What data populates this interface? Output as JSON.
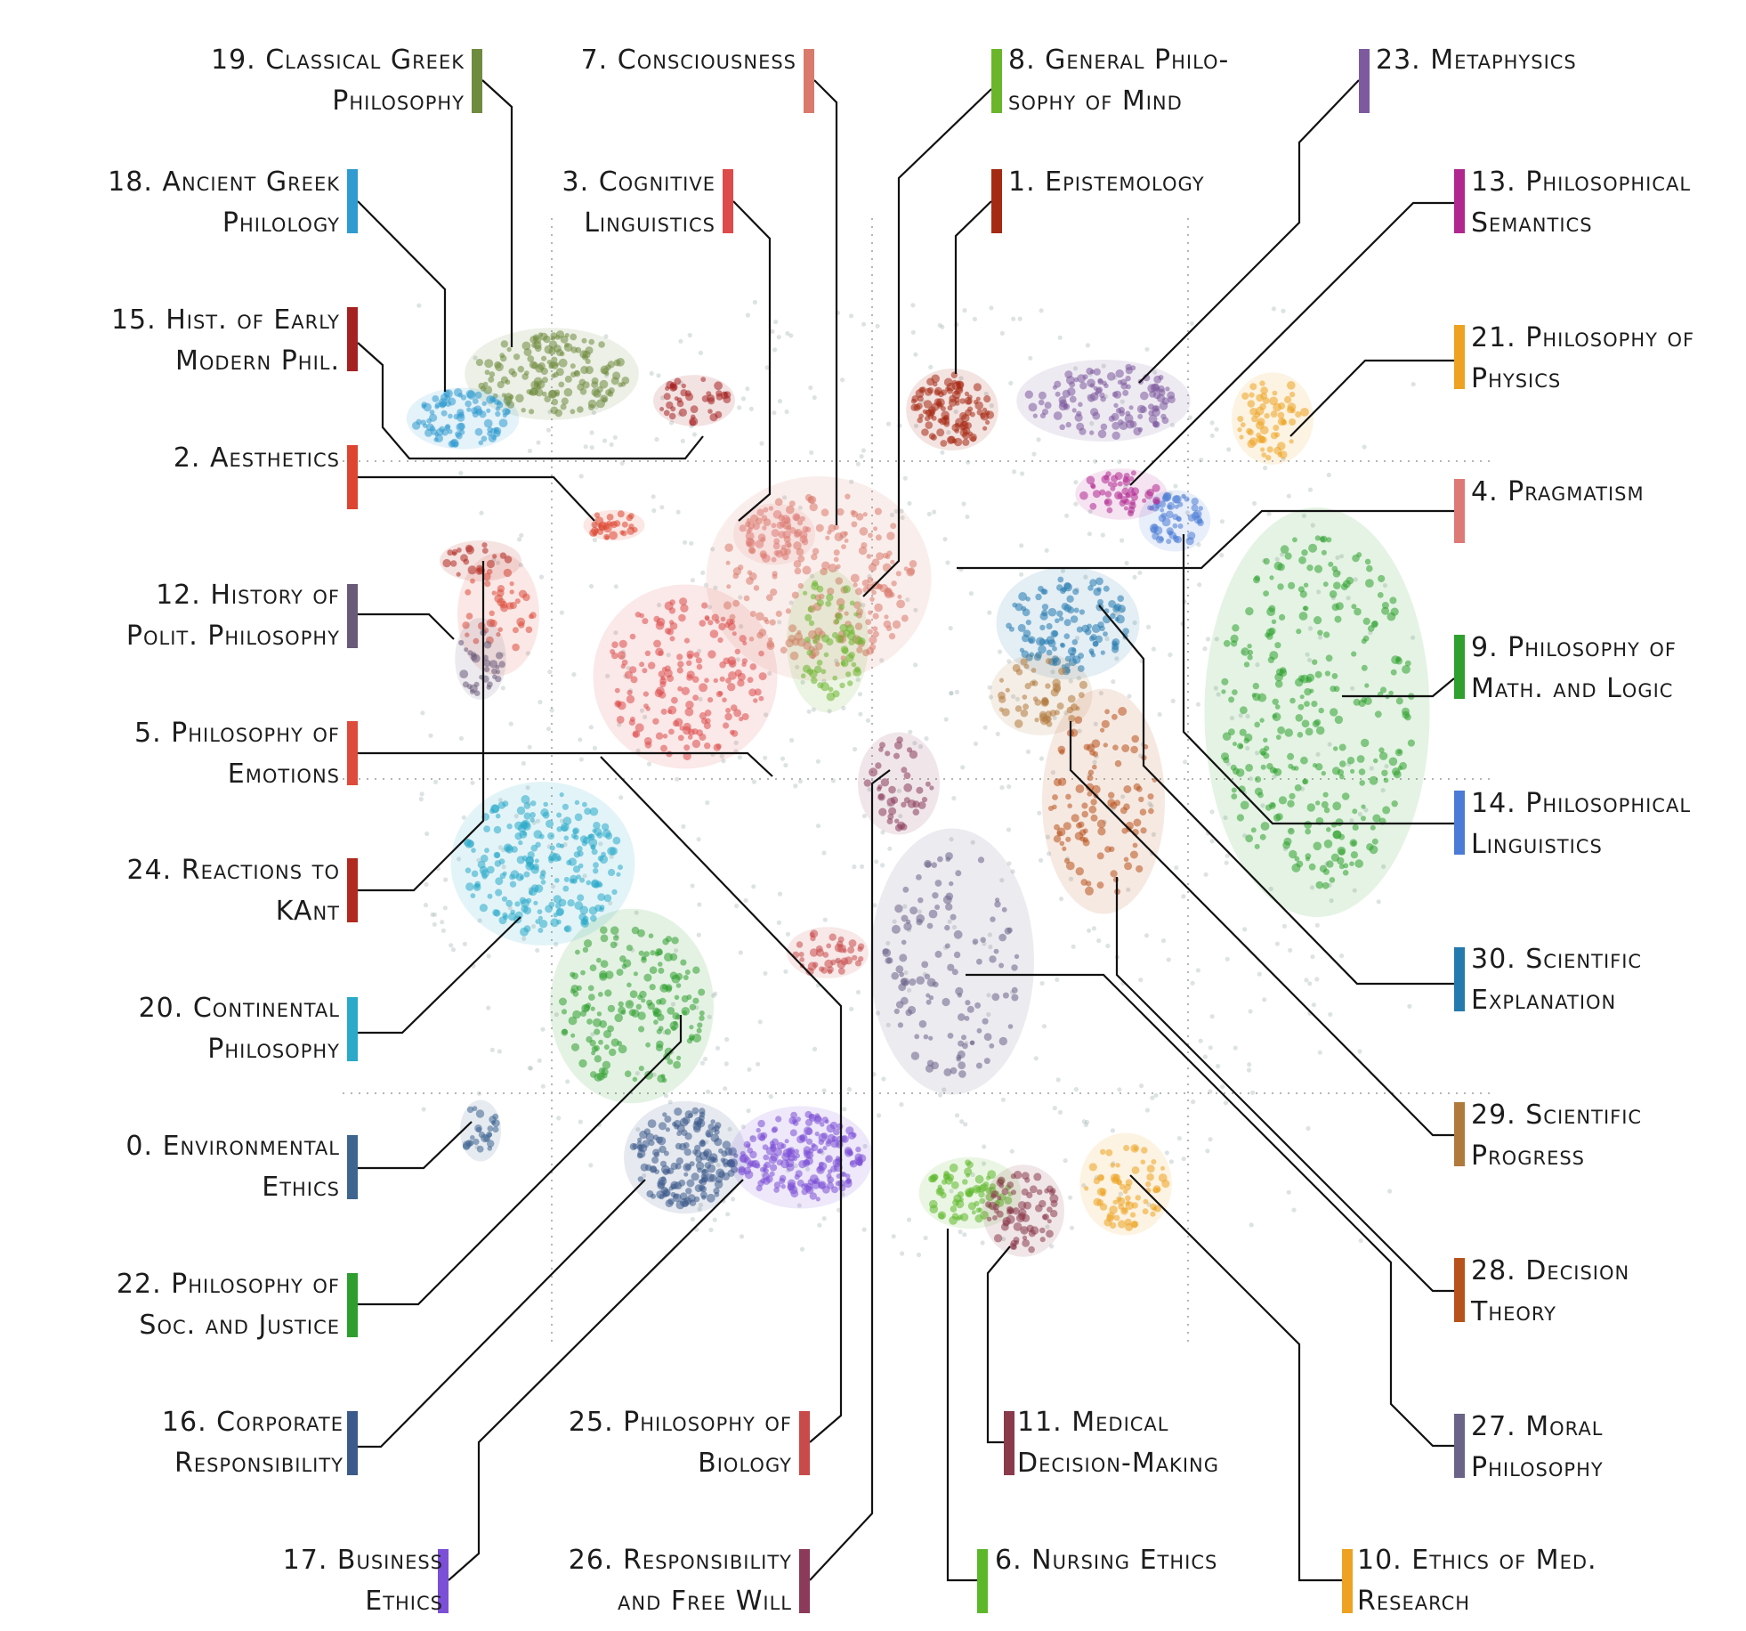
{
  "topics": [
    {
      "id": "19",
      "line1": "19. Classical Greek",
      "line2": "Philosophy",
      "color": "#6f8b3e"
    },
    {
      "id": "7",
      "line1": "7. Consciousness",
      "line2": "",
      "color": "#d97a6c"
    },
    {
      "id": "8",
      "line1": "8. General Philo-",
      "line2": "sophy of Mind",
      "color": "#6bb52b"
    },
    {
      "id": "23",
      "line1": "23. Metaphysics",
      "line2": "",
      "color": "#7d5a9e"
    },
    {
      "id": "18",
      "line1": "18. Ancient Greek",
      "line2": "Philology",
      "color": "#2f9bd0"
    },
    {
      "id": "3",
      "line1": "3. Cognitive",
      "line2": "Linguistics",
      "color": "#dd4b4b"
    },
    {
      "id": "1",
      "line1": "1. Epistemology",
      "line2": "",
      "color": "#a52a14"
    },
    {
      "id": "13",
      "line1": "13. Philosophical",
      "line2": "Semantics",
      "color": "#b0288f"
    },
    {
      "id": "15",
      "line1": "15. Hist. of Early",
      "line2": "Modern Phil.",
      "color": "#a52222"
    },
    {
      "id": "21",
      "line1": "21. Philosophy of",
      "line2": "Physics",
      "color": "#eda221"
    },
    {
      "id": "2",
      "line1": "2. Aesthetics",
      "line2": "",
      "color": "#dd4530"
    },
    {
      "id": "4",
      "line1": "4. Pragmatism",
      "line2": "",
      "color": "#de7a76"
    },
    {
      "id": "12",
      "line1": "12. History of",
      "line2": "Polit. Philosophy",
      "color": "#6a5a7a"
    },
    {
      "id": "9",
      "line1": "9. Philosophy of",
      "line2": "Math. and Logic",
      "color": "#2ea02e"
    },
    {
      "id": "5",
      "line1": "5. Philosophy of",
      "line2": "Emotions",
      "color": "#dd4b3a"
    },
    {
      "id": "14",
      "line1": "14. Philosophical",
      "line2": "Linguistics",
      "color": "#4b7bd6"
    },
    {
      "id": "24",
      "line1": "24. Reactions to",
      "line2": "KAnt",
      "color": "#b02a20"
    },
    {
      "id": "30",
      "line1": "30. Scientific",
      "line2": "Explanation",
      "color": "#247aae"
    },
    {
      "id": "20",
      "line1": "20. Continental",
      "line2": "Philosophy",
      "color": "#2aa9c8"
    },
    {
      "id": "29",
      "line1": "29. Scientific",
      "line2": "Progress",
      "color": "#b07a3c"
    },
    {
      "id": "0",
      "line1": "0. Environmental",
      "line2": "Ethics",
      "color": "#3e6490"
    },
    {
      "id": "28",
      "line1": "28. Decision",
      "line2": "Theory",
      "color": "#b8521c"
    },
    {
      "id": "22",
      "line1": "22. Philosophy of",
      "line2": "Soc. and Justice",
      "color": "#2e9e2e"
    },
    {
      "id": "27",
      "line1": "27. Moral",
      "line2": "Philosophy",
      "color": "#6b6388"
    },
    {
      "id": "16",
      "line1": "16. Corporate",
      "line2": "Responsibility",
      "color": "#3c5a8a"
    },
    {
      "id": "25",
      "line1": "25. Philosophy of",
      "line2": "Biology",
      "color": "#c94a4a"
    },
    {
      "id": "11",
      "line1": "11. Medical",
      "line2": "Decision-Making",
      "color": "#8b3a4c"
    },
    {
      "id": "17",
      "line1": "17. Business",
      "line2": "Ethics",
      "color": "#7b4fd6"
    },
    {
      "id": "26",
      "line1": "26. Responsibility",
      "line2": "and Free Will",
      "color": "#8b3a5a"
    },
    {
      "id": "6",
      "line1": "6. Nursing Ethics",
      "line2": "",
      "color": "#5cb82a"
    },
    {
      "id": "10",
      "line1": "10. Ethics of Med.",
      "line2": "Research",
      "color": "#eda221"
    }
  ]
}
